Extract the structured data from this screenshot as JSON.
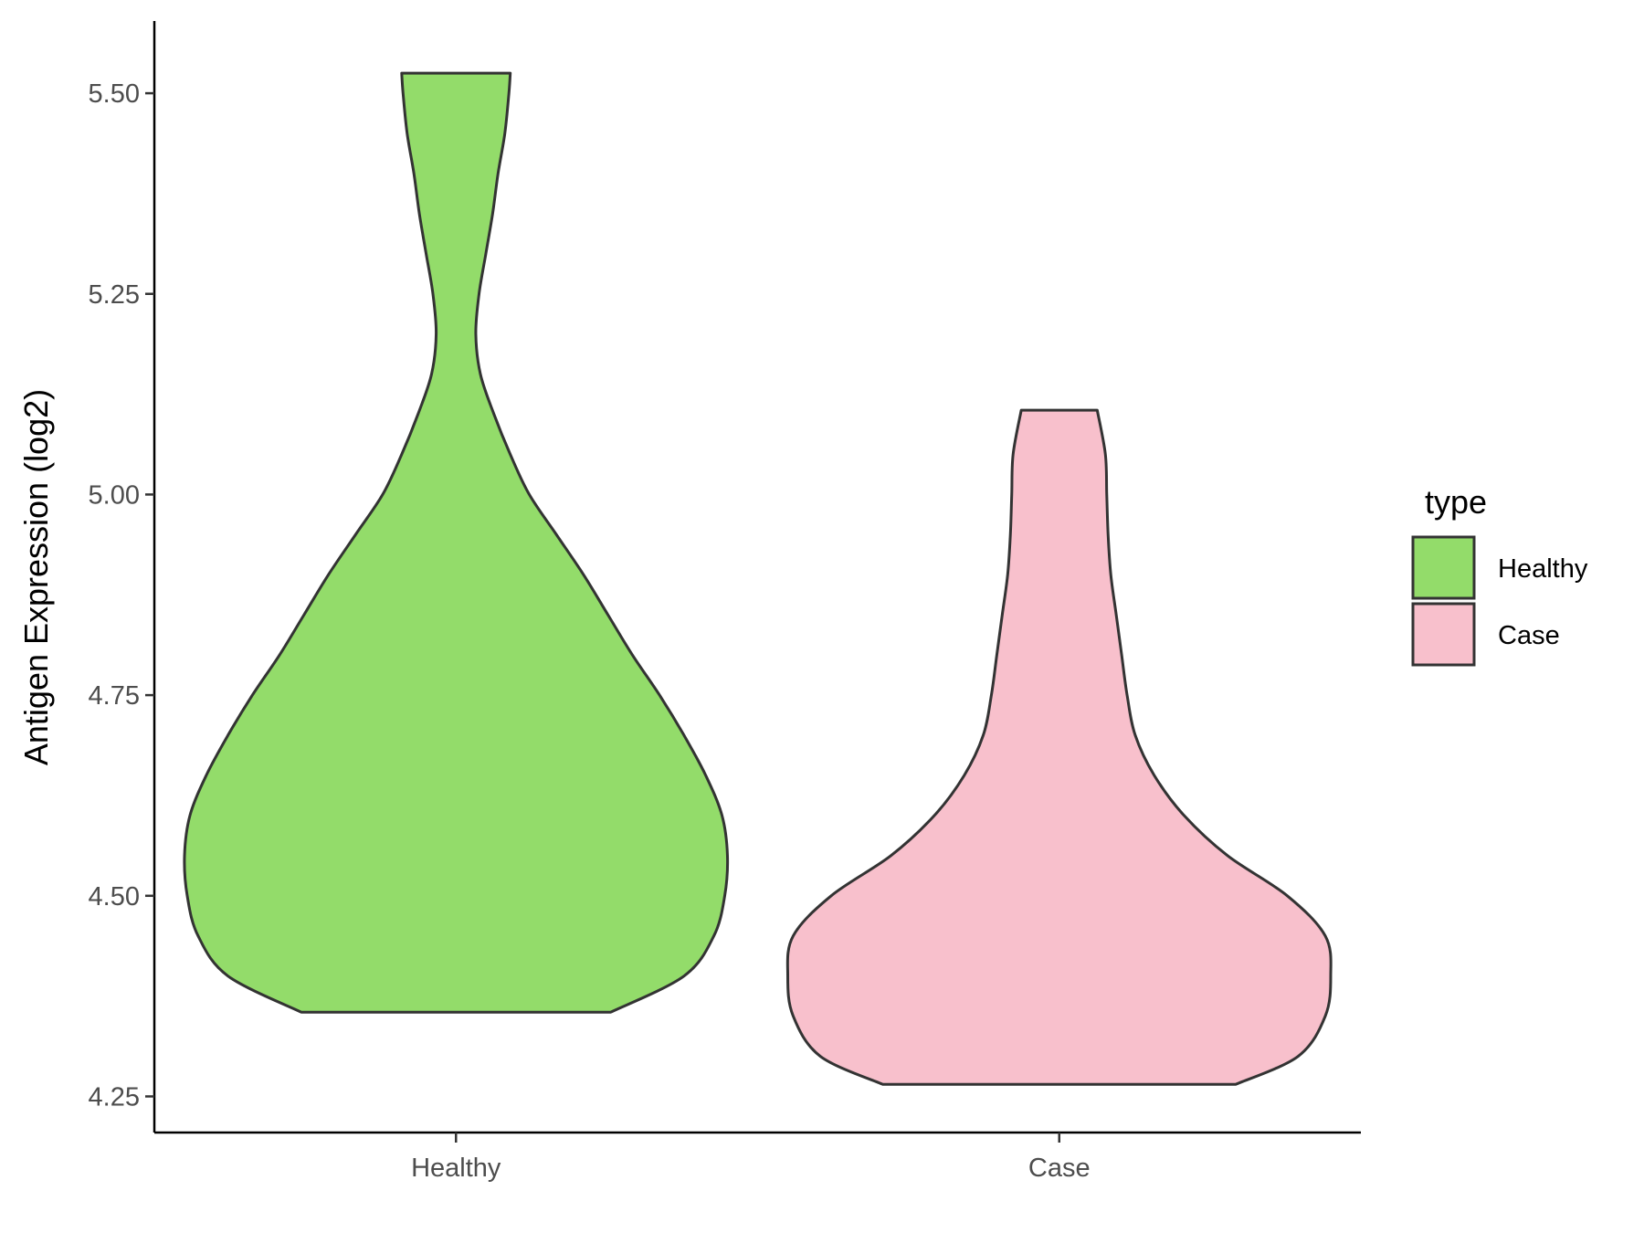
{
  "chart_data": {
    "type": "violin",
    "title": "",
    "xlabel": "",
    "ylabel": "Antigen Expression (log2)",
    "ylim": [
      4.205,
      5.59
    ],
    "y_ticks": [
      "4.25",
      "4.50",
      "4.75",
      "5.00",
      "5.25",
      "5.50"
    ],
    "categories": [
      "Healthy",
      "Case"
    ],
    "grid": false,
    "legend": {
      "title": "type",
      "placement": "right"
    },
    "series": [
      {
        "name": "Healthy",
        "color": "#93dc6a",
        "min": 4.355,
        "max": 5.525,
        "density": [
          [
            4.355,
            0.57
          ],
          [
            4.4,
            0.84
          ],
          [
            4.45,
            0.95
          ],
          [
            4.5,
            0.99
          ],
          [
            4.55,
            1.0
          ],
          [
            4.6,
            0.98
          ],
          [
            4.65,
            0.92
          ],
          [
            4.7,
            0.84
          ],
          [
            4.75,
            0.75
          ],
          [
            4.8,
            0.65
          ],
          [
            4.85,
            0.56
          ],
          [
            4.9,
            0.47
          ],
          [
            4.95,
            0.37
          ],
          [
            5.0,
            0.27
          ],
          [
            5.05,
            0.2
          ],
          [
            5.1,
            0.14
          ],
          [
            5.15,
            0.09
          ],
          [
            5.2,
            0.073
          ],
          [
            5.25,
            0.085
          ],
          [
            5.3,
            0.11
          ],
          [
            5.35,
            0.135
          ],
          [
            5.4,
            0.155
          ],
          [
            5.45,
            0.18
          ],
          [
            5.5,
            0.195
          ],
          [
            5.525,
            0.2
          ]
        ]
      },
      {
        "name": "Case",
        "color": "#f8c0cc",
        "min": 4.265,
        "max": 5.105,
        "density": [
          [
            4.265,
            0.65
          ],
          [
            4.3,
            0.88
          ],
          [
            4.35,
            0.98
          ],
          [
            4.4,
            1.0
          ],
          [
            4.45,
            0.98
          ],
          [
            4.5,
            0.84
          ],
          [
            4.55,
            0.62
          ],
          [
            4.6,
            0.46
          ],
          [
            4.65,
            0.35
          ],
          [
            4.7,
            0.28
          ],
          [
            4.75,
            0.25
          ],
          [
            4.8,
            0.23
          ],
          [
            4.85,
            0.21
          ],
          [
            4.9,
            0.19
          ],
          [
            4.95,
            0.18
          ],
          [
            5.0,
            0.175
          ],
          [
            5.05,
            0.17
          ],
          [
            5.105,
            0.14
          ]
        ]
      }
    ]
  }
}
